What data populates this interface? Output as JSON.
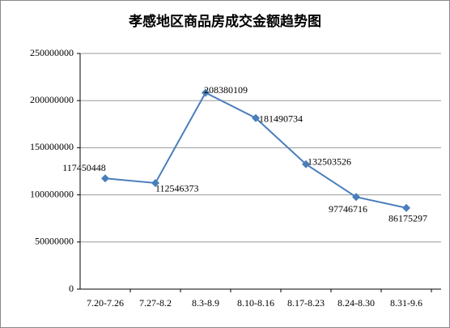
{
  "chart_data": {
    "type": "line",
    "title": "孝感地区商品房成交金额趋势图",
    "categories": [
      "7.20-7.26",
      "7.27-8.2",
      "8.3-8.9",
      "8.10-8.16",
      "8.17-8.23",
      "8.24-8.30",
      "8.31-9.6"
    ],
    "series": [
      {
        "color": "#4a7ebb",
        "values": [
          117450448,
          112546373,
          208380109,
          181490734,
          132503526,
          97746716,
          86175297
        ]
      }
    ],
    "ylim": [
      0,
      250000000
    ],
    "yticks": [
      0,
      50000000,
      100000000,
      150000000,
      200000000,
      250000000
    ],
    "grid": true
  }
}
